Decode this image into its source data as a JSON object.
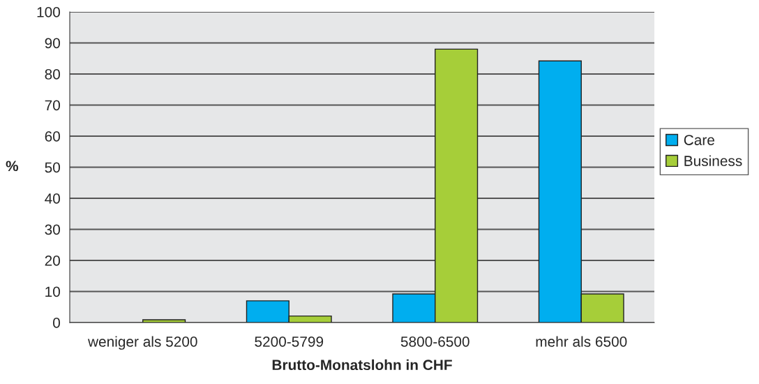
{
  "chart_data": {
    "type": "bar",
    "xlabel": "Brutto-Monatslohn in CHF",
    "ylabel": "%",
    "categories": [
      "weniger als 5200",
      "5200-5799",
      "5800-6500",
      "mehr als 6500"
    ],
    "series": [
      {
        "name": "Care",
        "color": "#00aeef",
        "values": [
          null,
          7,
          9.2,
          84.2
        ]
      },
      {
        "name": "Business",
        "color": "#a6ce39",
        "values": [
          0.9,
          2.1,
          88,
          9.2
        ]
      }
    ],
    "ylim": [
      0,
      100
    ],
    "yticks": [
      0,
      10,
      20,
      30,
      40,
      50,
      60,
      70,
      80,
      90,
      100
    ],
    "grid": "y",
    "legend": "right"
  }
}
